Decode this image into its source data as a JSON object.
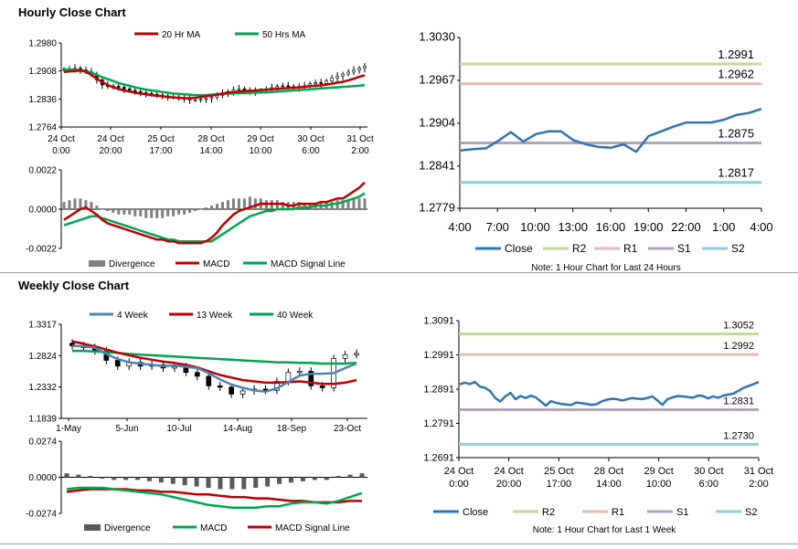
{
  "titles": {
    "hourly": "Hourly Close Chart",
    "weekly": "Weekly Close Chart"
  },
  "chart_data": [
    {
      "id": "hourly-candles",
      "type": "candlestick",
      "legend": [
        "20 Hr MA",
        "50 Hrs MA"
      ],
      "colors": {
        "ma20": "#c00000",
        "ma50": "#00a651"
      },
      "ylim": [
        1.2764,
        1.298
      ],
      "yticks": [
        "1.2980",
        "1.2908",
        "1.2836",
        "1.2764"
      ],
      "xticks": [
        [
          "24 Oct",
          "0:00"
        ],
        [
          "24 Oct",
          "20:00"
        ],
        [
          "25 Oct",
          "17:00"
        ],
        [
          "28 Oct",
          "14:00"
        ],
        [
          "29 Oct",
          "10:00"
        ],
        [
          "30 Oct",
          "6:00"
        ],
        [
          "31 Oct",
          "2:00"
        ]
      ],
      "close": [
        1.2912,
        1.2913,
        1.2915,
        1.2911,
        1.2906,
        1.29,
        1.2885,
        1.2872,
        1.2868,
        1.2869,
        1.2866,
        1.2862,
        1.2858,
        1.2855,
        1.2852,
        1.285,
        1.2848,
        1.2846,
        1.2844,
        1.2842,
        1.2841,
        1.2839,
        1.2836,
        1.2834,
        1.2834,
        1.2835,
        1.2837,
        1.284,
        1.2845,
        1.285,
        1.2855,
        1.286,
        1.2862,
        1.2858,
        1.2856,
        1.2855,
        1.2858,
        1.286,
        1.2865,
        1.2868,
        1.287,
        1.2868,
        1.2865,
        1.2868,
        1.287,
        1.2875,
        1.2878,
        1.2876,
        1.2882,
        1.289,
        1.2895,
        1.29,
        1.2905,
        1.291,
        1.2915,
        1.292
      ],
      "ma20": [
        1.2905,
        1.2907,
        1.2908,
        1.2909,
        1.2906,
        1.2898,
        1.2888,
        1.2879,
        1.2872,
        1.2866,
        1.2862,
        1.2858,
        1.2855,
        1.2852,
        1.285,
        1.2848,
        1.2846,
        1.2844,
        1.2843,
        1.2841,
        1.284,
        1.2839,
        1.2838,
        1.2838,
        1.2839,
        1.2841,
        1.2843,
        1.2845,
        1.2847,
        1.285,
        1.2852,
        1.2854,
        1.2855,
        1.2856,
        1.2857,
        1.2858,
        1.2859,
        1.286,
        1.2861,
        1.2862,
        1.2863,
        1.2864,
        1.2865,
        1.2866,
        1.2867,
        1.2869,
        1.287,
        1.2871,
        1.2873,
        1.2875,
        1.2878,
        1.288,
        1.2884,
        1.2888,
        1.2893,
        1.2897
      ],
      "ma50": [
        1.2912,
        1.2912,
        1.2911,
        1.291,
        1.2908,
        1.2904,
        1.2898,
        1.2892,
        1.2887,
        1.2882,
        1.2877,
        1.2873,
        1.287,
        1.2866,
        1.2863,
        1.286,
        1.2858,
        1.2856,
        1.2854,
        1.2852,
        1.285,
        1.2849,
        1.2848,
        1.2847,
        1.2846,
        1.2846,
        1.2846,
        1.2847,
        1.2848,
        1.2849,
        1.285,
        1.285,
        1.2851,
        1.2851,
        1.2852,
        1.2852,
        1.2853,
        1.2853,
        1.2854,
        1.2855,
        1.2856,
        1.2857,
        1.2858,
        1.2859,
        1.286,
        1.2861,
        1.2862,
        1.2863,
        1.2864,
        1.2865,
        1.2866,
        1.2867,
        1.2868,
        1.2869,
        1.287,
        1.2872
      ]
    },
    {
      "id": "hourly-macd",
      "type": "macd",
      "legend": [
        "Divergence",
        "MACD",
        "MACD Signal Line"
      ],
      "colors": {
        "div": "#7f7f7f",
        "macd": "#c00000",
        "signal": "#00a651"
      },
      "ylim": [
        -0.0022,
        0.0022
      ],
      "yticks": [
        "0.0022",
        "0.0000",
        "-0.0022"
      ],
      "divergence": [
        0.0004,
        0.0005,
        0.0006,
        0.0006,
        0.0005,
        0.0004,
        0.0002,
        0.0,
        -0.0001,
        -0.0002,
        -0.0003,
        -0.0003,
        -0.0003,
        -0.0004,
        -0.0004,
        -0.0005,
        -0.0005,
        -0.0005,
        -0.0005,
        -0.0004,
        -0.0004,
        -0.0003,
        -0.0003,
        -0.0002,
        -0.0001,
        0.0,
        0.0001,
        0.0002,
        0.0003,
        0.0004,
        0.0005,
        0.0006,
        0.0006,
        0.0006,
        0.0007,
        0.0006,
        0.0006,
        0.0005,
        0.0005,
        0.0005,
        0.0004,
        0.0004,
        0.0004,
        0.0004,
        0.0003,
        0.0003,
        0.0003,
        0.0004,
        0.0004,
        0.0004,
        0.0005,
        0.0005,
        0.0005,
        0.0006,
        0.0006,
        0.0006
      ],
      "macd": [
        -0.0006,
        -0.0004,
        -0.0002,
        0.0,
        0.0001,
        -0.0001,
        -0.0003,
        -0.0006,
        -0.0008,
        -0.0009,
        -0.001,
        -0.0011,
        -0.0012,
        -0.0013,
        -0.0014,
        -0.0015,
        -0.0016,
        -0.0017,
        -0.0017,
        -0.0018,
        -0.0018,
        -0.0019,
        -0.0019,
        -0.0019,
        -0.0019,
        -0.0019,
        -0.0018,
        -0.0016,
        -0.0013,
        -0.0009,
        -0.0006,
        -0.0003,
        -0.0001,
        0.0,
        0.0001,
        0.0002,
        0.0003,
        0.0003,
        0.0003,
        0.0003,
        0.0003,
        0.0002,
        0.0002,
        0.0003,
        0.0003,
        0.0003,
        0.0003,
        0.0004,
        0.0004,
        0.0005,
        0.0006,
        0.0006,
        0.0008,
        0.001,
        0.0012,
        0.0015
      ],
      "signal": [
        -0.0009,
        -0.0008,
        -0.0007,
        -0.0006,
        -0.0005,
        -0.0004,
        -0.0004,
        -0.0005,
        -0.0006,
        -0.0007,
        -0.0008,
        -0.0009,
        -0.001,
        -0.0011,
        -0.0012,
        -0.0013,
        -0.0014,
        -0.0015,
        -0.0016,
        -0.0017,
        -0.0017,
        -0.0018,
        -0.0018,
        -0.0018,
        -0.0018,
        -0.0018,
        -0.0018,
        -0.0018,
        -0.0016,
        -0.0014,
        -0.0012,
        -0.001,
        -0.0008,
        -0.0006,
        -0.0004,
        -0.0003,
        -0.0002,
        -0.0001,
        -0.0001,
        0.0,
        0.0,
        0.0,
        0.0,
        0.0001,
        0.0001,
        0.0001,
        0.0002,
        0.0002,
        0.0002,
        0.0003,
        0.0003,
        0.0004,
        0.0005,
        0.0006,
        0.0007,
        0.0009
      ]
    },
    {
      "id": "hourly-pivot",
      "type": "line",
      "ylim": [
        1.2779,
        1.303
      ],
      "yticks": [
        "1.3030",
        "1.2967",
        "1.2904",
        "1.2841",
        "1.2779"
      ],
      "xticks": [
        "4:00",
        "7:00",
        "10:00",
        "13:00",
        "16:00",
        "19:00",
        "22:00",
        "1:00",
        "4:00"
      ],
      "close": [
        1.2864,
        1.2866,
        1.2867,
        1.2878,
        1.2891,
        1.2877,
        1.2888,
        1.2892,
        1.2892,
        1.2879,
        1.2873,
        1.2869,
        1.2868,
        1.2873,
        1.2862,
        1.2885,
        1.2892,
        1.2899,
        1.2905,
        1.2905,
        1.2905,
        1.2909,
        1.2916,
        1.2919,
        1.2925
      ],
      "levels": [
        {
          "name": "R2",
          "value": 1.2991,
          "label": "1.2991",
          "color": "#c3d69b"
        },
        {
          "name": "R1",
          "value": 1.2962,
          "label": "1.2962",
          "color": "#e6b9b8"
        },
        {
          "name": "S1",
          "value": 1.2875,
          "label": "1.2875",
          "color": "#b3a2c7"
        },
        {
          "name": "S2",
          "value": 1.2817,
          "label": "1.2817",
          "color": "#93cddd"
        }
      ],
      "close_color": "#2e75b6",
      "legend": [
        "Close",
        "R2",
        "R1",
        "S1",
        "S2"
      ],
      "note": "Note: 1 Hour Chart for Last 24 Hours"
    },
    {
      "id": "weekly-candles",
      "type": "candlestick",
      "legend": [
        "4 Week",
        "13 Week",
        "40 Week"
      ],
      "colors": {
        "ma4": "#4f81bd",
        "ma13": "#c00000",
        "ma40": "#00a651"
      },
      "ylim": [
        1.1839,
        1.3317
      ],
      "yticks": [
        "1.3317",
        "1.2824",
        "1.2332",
        "1.1839"
      ],
      "xticks": [
        "1-May",
        "5-Jun",
        "10-Jul",
        "14-Aug",
        "18-Sep",
        "23-Oct"
      ],
      "close": [
        1.298,
        1.295,
        1.29,
        1.275,
        1.266,
        1.272,
        1.266,
        1.268,
        1.263,
        1.265,
        1.256,
        1.25,
        1.235,
        1.233,
        1.222,
        1.227,
        1.23,
        1.228,
        1.242,
        1.256,
        1.258,
        1.235,
        1.232,
        1.278,
        1.284,
        1.286
      ],
      "ma4": [
        1.298,
        1.297,
        1.295,
        1.285,
        1.277,
        1.272,
        1.27,
        1.268,
        1.266,
        1.267,
        1.265,
        1.263,
        1.255,
        1.245,
        1.237,
        1.232,
        1.228,
        1.226,
        1.231,
        1.241,
        1.251,
        1.254,
        1.254,
        1.255,
        1.263,
        1.27
      ],
      "ma13": [
        1.305,
        1.301,
        1.297,
        1.292,
        1.287,
        1.283,
        1.279,
        1.276,
        1.273,
        1.271,
        1.268,
        1.264,
        1.258,
        1.252,
        1.248,
        1.244,
        1.242,
        1.24,
        1.24,
        1.241,
        1.242,
        1.24,
        1.238,
        1.238,
        1.24,
        1.244
      ],
      "ma40": [
        1.29,
        1.29,
        1.289,
        1.288,
        1.287,
        1.285,
        1.284,
        1.283,
        1.282,
        1.281,
        1.28,
        1.279,
        1.278,
        1.277,
        1.276,
        1.275,
        1.274,
        1.273,
        1.272,
        1.272,
        1.271,
        1.271,
        1.27,
        1.27,
        1.27,
        1.271
      ]
    },
    {
      "id": "weekly-macd",
      "type": "macd",
      "legend": [
        "Divergence",
        "MACD",
        "MACD Signal Line"
      ],
      "colors": {
        "div": "#595959",
        "macd": "#00a651",
        "signal": "#c00000"
      },
      "ylim": [
        -0.0274,
        0.0274
      ],
      "yticks": [
        "0.0274",
        "0.0000",
        "-0.0274"
      ],
      "divergence": [
        0.003,
        0.002,
        0.001,
        -0.001,
        -0.002,
        -0.002,
        -0.002,
        -0.003,
        -0.004,
        -0.005,
        -0.006,
        -0.007,
        -0.008,
        -0.009,
        -0.009,
        -0.009,
        -0.008,
        -0.007,
        -0.005,
        -0.004,
        -0.003,
        -0.002,
        -0.002,
        0.001,
        0.002,
        0.003
      ],
      "macd": [
        -0.009,
        -0.008,
        -0.008,
        -0.008,
        -0.009,
        -0.01,
        -0.011,
        -0.012,
        -0.013,
        -0.015,
        -0.017,
        -0.019,
        -0.021,
        -0.022,
        -0.023,
        -0.023,
        -0.023,
        -0.022,
        -0.022,
        -0.02,
        -0.019,
        -0.019,
        -0.02,
        -0.018,
        -0.015,
        -0.012
      ],
      "signal": [
        -0.011,
        -0.01,
        -0.009,
        -0.009,
        -0.009,
        -0.009,
        -0.01,
        -0.01,
        -0.011,
        -0.011,
        -0.012,
        -0.013,
        -0.013,
        -0.014,
        -0.015,
        -0.015,
        -0.016,
        -0.016,
        -0.017,
        -0.018,
        -0.018,
        -0.019,
        -0.019,
        -0.019,
        -0.018,
        -0.018
      ]
    },
    {
      "id": "weekly-pivot",
      "type": "line",
      "ylim": [
        1.2691,
        1.3091
      ],
      "yticks": [
        "1.3091",
        "1.2991",
        "1.2891",
        "1.2791",
        "1.2691"
      ],
      "xticks": [
        [
          "24 Oct",
          "0:00"
        ],
        [
          "24 Oct",
          "20:00"
        ],
        [
          "25 Oct",
          "17:00"
        ],
        [
          "28 Oct",
          "14:00"
        ],
        [
          "29 Oct",
          "10:00"
        ],
        [
          "30 Oct",
          "6:00"
        ],
        [
          "31 Oct",
          "2:00"
        ]
      ],
      "close": [
        1.2905,
        1.291,
        1.2906,
        1.2912,
        1.2898,
        1.2895,
        1.2885,
        1.2865,
        1.2855,
        1.287,
        1.288,
        1.2862,
        1.2871,
        1.2865,
        1.2872,
        1.2867,
        1.2855,
        1.2843,
        1.2856,
        1.2851,
        1.2848,
        1.2846,
        1.2845,
        1.2852,
        1.285,
        1.2848,
        1.2845,
        1.2847,
        1.2855,
        1.286,
        1.2863,
        1.2862,
        1.2858,
        1.2861,
        1.2865,
        1.2863,
        1.2862,
        1.2865,
        1.287,
        1.2858,
        1.2845,
        1.2862,
        1.2867,
        1.2871,
        1.287,
        1.2868,
        1.2866,
        1.2872,
        1.2871,
        1.2864,
        1.287,
        1.2866,
        1.2872,
        1.2875,
        1.2878,
        1.2886,
        1.2895,
        1.29,
        1.2906,
        1.2912
      ],
      "levels": [
        {
          "name": "R2",
          "value": 1.3052,
          "label": "1.3052",
          "color": "#c3d69b"
        },
        {
          "name": "R1",
          "value": 1.2992,
          "label": "1.2992",
          "color": "#e6b9b8"
        },
        {
          "name": "S1",
          "value": 1.2831,
          "label": "1.2831",
          "color": "#b3a2c7"
        },
        {
          "name": "S2",
          "value": 1.273,
          "label": "1.2730",
          "color": "#93cddd"
        }
      ],
      "close_color": "#2e75b6",
      "legend": [
        "Close",
        "R2",
        "R1",
        "S1",
        "S2"
      ],
      "note": "Note: 1 Hour Chart for Last 1 Week"
    }
  ]
}
